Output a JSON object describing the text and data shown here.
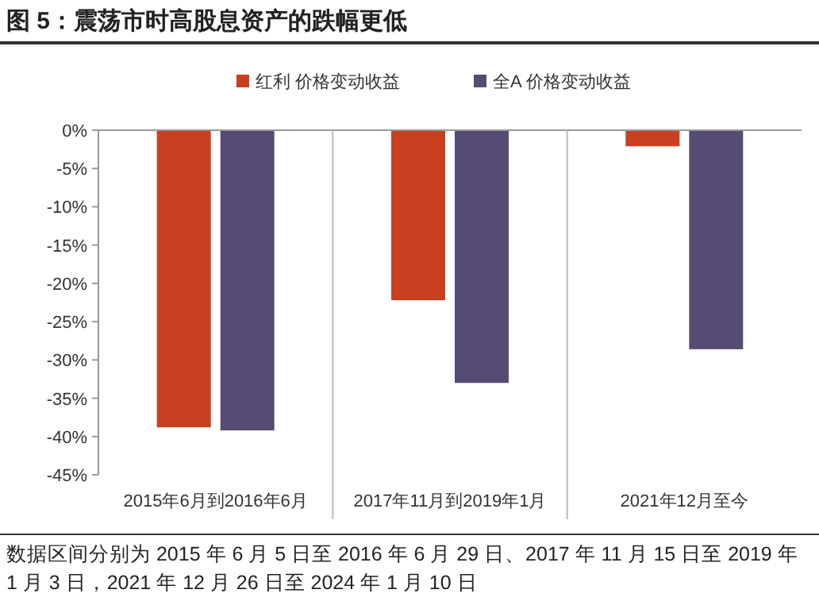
{
  "chart_data": {
    "type": "bar",
    "title": "图 5：震荡市时高股息资产的跌幅更低",
    "categories": [
      "2015年6月到2016年6月",
      "2017年11月到2019年1月",
      "2021年12月至今"
    ],
    "series": [
      {
        "name": "红利 价格变动收益",
        "color": "#c8401f",
        "values": [
          -38.8,
          -22.2,
          -2.1
        ]
      },
      {
        "name": "全A 价格变动收益",
        "color": "#564b74",
        "values": [
          -39.2,
          -33.0,
          -28.6
        ]
      }
    ],
    "ylim": [
      -45,
      0
    ],
    "yticks": [
      {
        "value": 0,
        "label": "0%"
      },
      {
        "value": -5,
        "label": "-5%"
      },
      {
        "value": -10,
        "label": "-10%"
      },
      {
        "value": -15,
        "label": "-15%"
      },
      {
        "value": -20,
        "label": "-20%"
      },
      {
        "value": -25,
        "label": "-25%"
      },
      {
        "value": -30,
        "label": "-30%"
      },
      {
        "value": -35,
        "label": "-35%"
      },
      {
        "value": -40,
        "label": "-40%"
      },
      {
        "value": -45,
        "label": "-45%"
      }
    ],
    "grid": false,
    "legend": "top",
    "annotations": [
      "数据区间分别为 2015 年 6 月 5 日至 2016 年 6 月 29 日、2017 年 11 月 15 日至 2019 年 1 月 3 日，2021 年 12 月 26 日至 2024 年 1 月 10 日"
    ]
  }
}
